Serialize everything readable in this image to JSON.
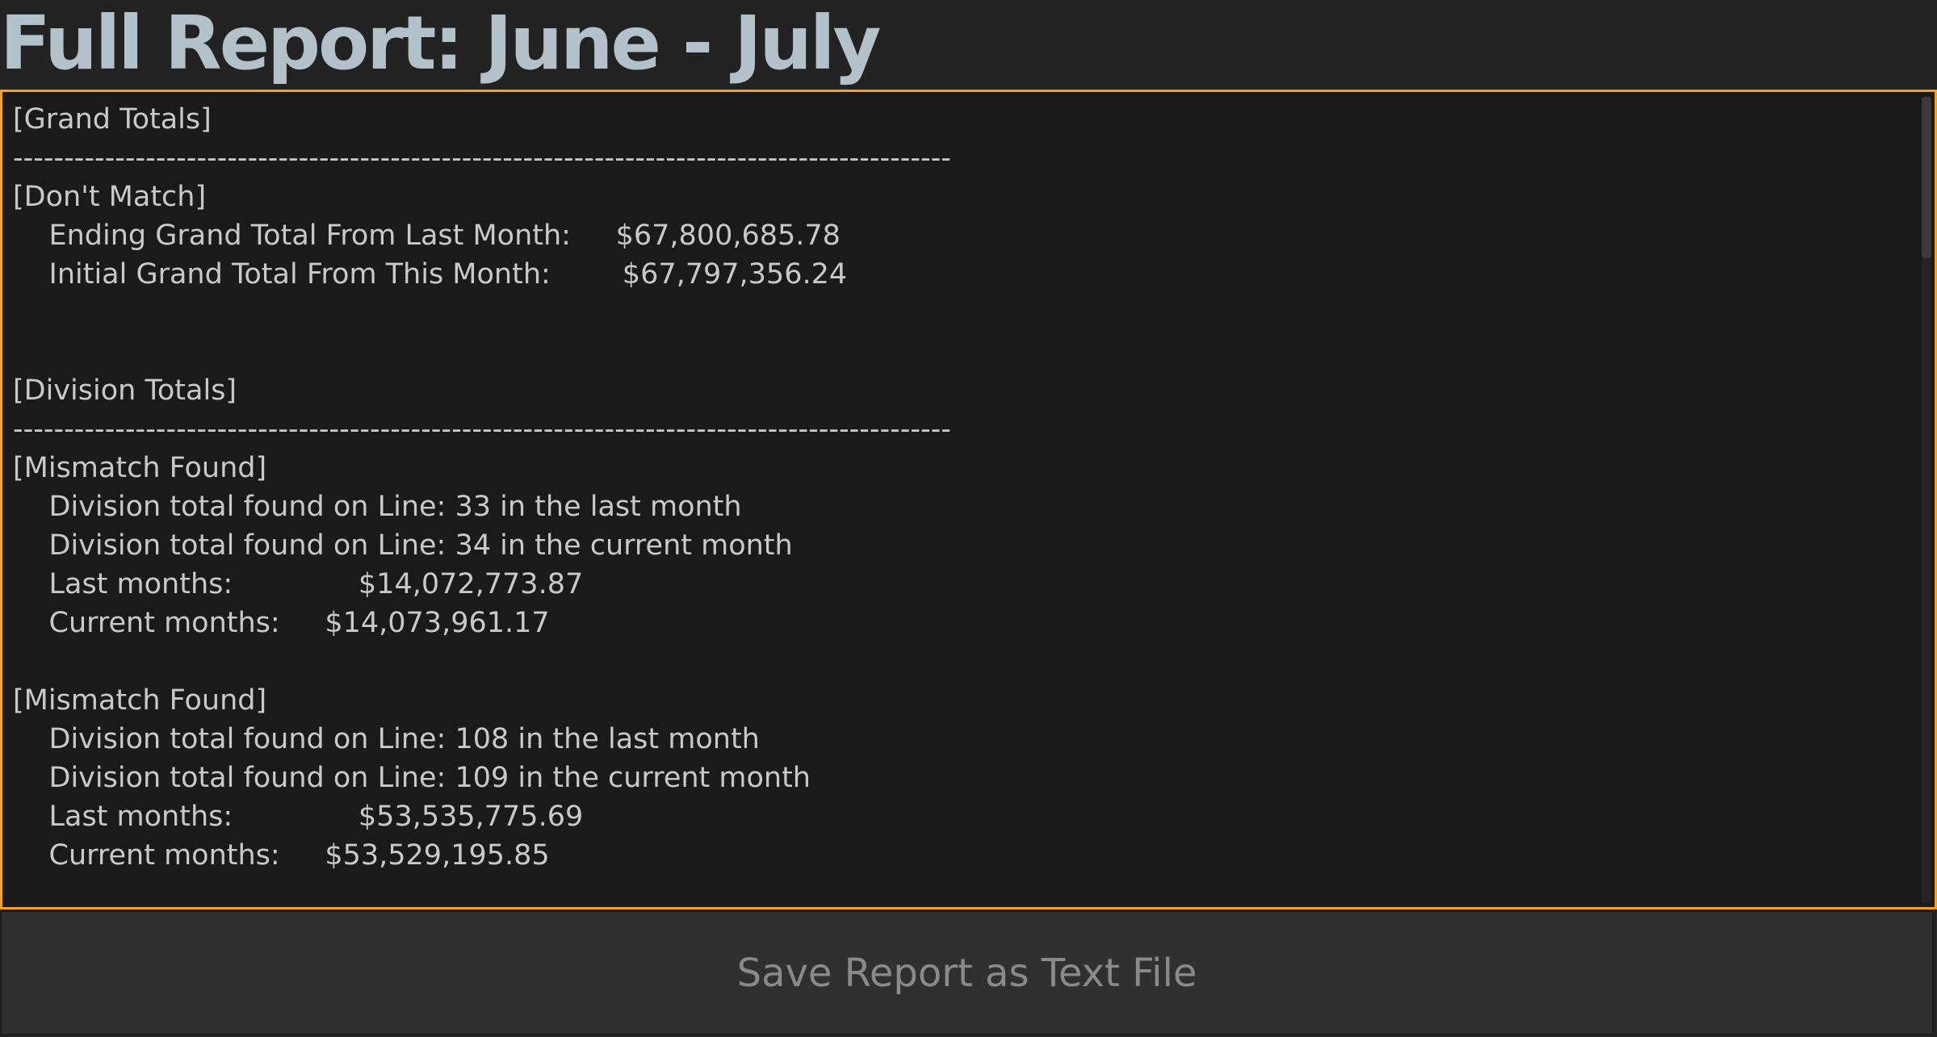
{
  "header": {
    "title": "Full Report: June - July"
  },
  "report": {
    "text": "[Grand Totals]\n--------------------------------------------------------------------------------------------\n[Don't Match]\n    Ending Grand Total From Last Month:     $67,800,685.78\n    Initial Grand Total From This Month:        $67,797,356.24\n\n\n[Division Totals]\n--------------------------------------------------------------------------------------------\n[Mismatch Found]\n    Division total found on Line: 33 in the last month\n    Division total found on Line: 34 in the current month\n    Last months:              $14,072,773.87\n    Current months:     $14,073,961.17\n\n[Mismatch Found]\n    Division total found on Line: 108 in the last month\n    Division total found on Line: 109 in the current month\n    Last months:              $53,535,775.69\n    Current months:     $53,529,195.85\n\n"
  },
  "footer": {
    "save_label": "Save Report as Text File"
  },
  "colors": {
    "background": "#222222",
    "title": "#b3c1ca",
    "accent_border": "#f7a21b",
    "text": "#c9c9c9",
    "button_bg": "#303030",
    "button_text": "#8a8a8a"
  }
}
